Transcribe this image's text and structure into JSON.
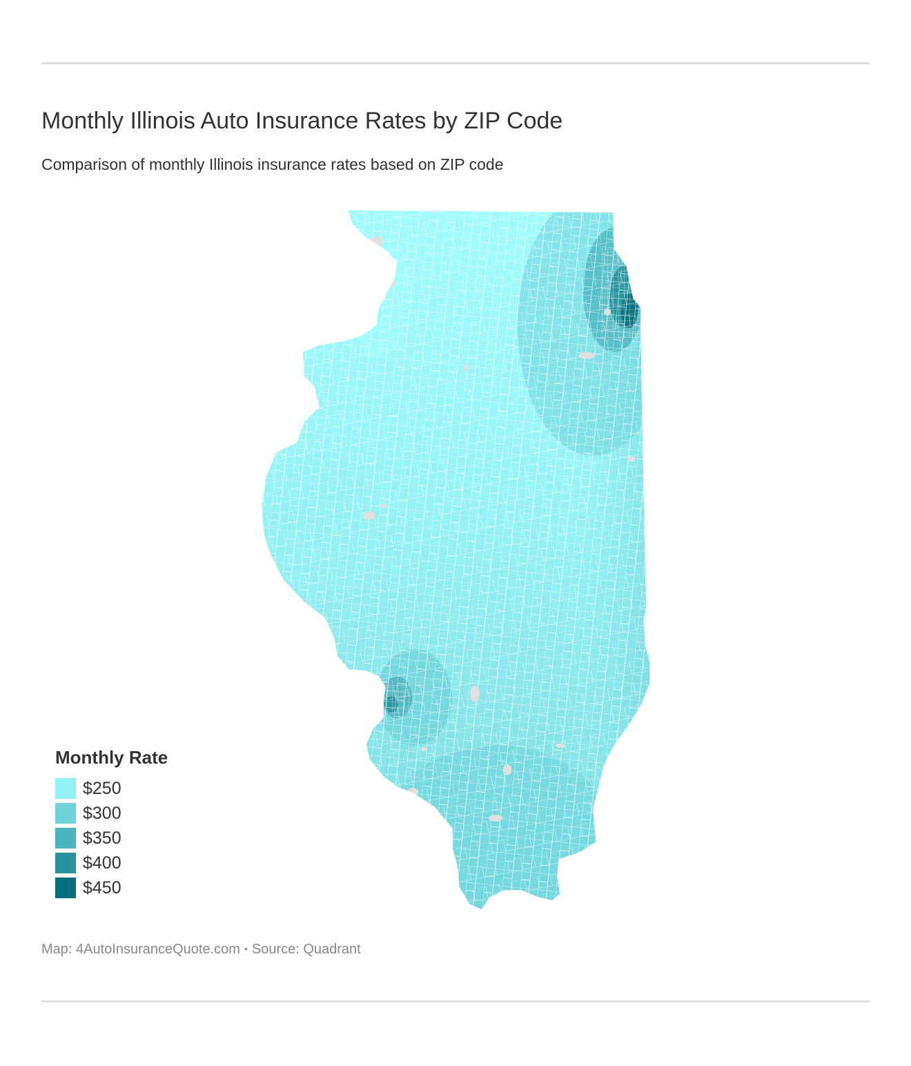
{
  "title": "Monthly Illinois Auto Insurance Rates by ZIP Code",
  "subtitle": "Comparison of monthly Illinois insurance rates based on ZIP code",
  "map": {
    "region": "Illinois",
    "variable": "Monthly Rate",
    "level": "ZIP code"
  },
  "legend": {
    "title": "Monthly Rate",
    "items": [
      {
        "label": "$250",
        "color": "#8ef2f5"
      },
      {
        "label": "$300",
        "color": "#6fd3da"
      },
      {
        "label": "$350",
        "color": "#4bb5bf"
      },
      {
        "label": "$400",
        "color": "#26939e"
      },
      {
        "label": "$450",
        "color": "#04707e"
      }
    ]
  },
  "colors": {
    "no_data": "#e0e0e0",
    "zip_border": "#ffffff",
    "rule": "#e0e0e0"
  },
  "credits": {
    "map": "Map: 4AutoInsuranceQuote.com",
    "separator": "•",
    "source": "Source: Quadrant"
  }
}
